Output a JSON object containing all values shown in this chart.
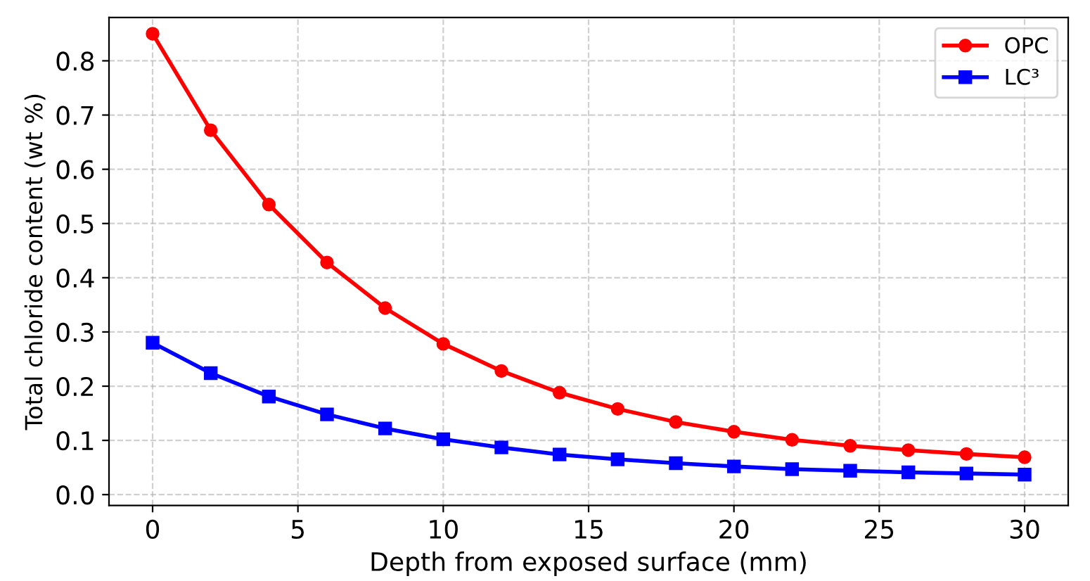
{
  "chart_data": {
    "type": "line",
    "xlabel": "Depth from exposed surface (mm)",
    "ylabel": "Total chloride content (wt %)",
    "x": [
      0,
      2,
      4,
      6,
      8,
      10,
      12,
      14,
      16,
      18,
      20,
      22,
      24,
      26,
      28,
      30
    ],
    "series": [
      {
        "name": "OPC",
        "color": "#ff0000",
        "marker": "circle",
        "values": [
          0.85,
          0.672,
          0.535,
          0.428,
          0.344,
          0.278,
          0.228,
          0.188,
          0.158,
          0.134,
          0.116,
          0.101,
          0.09,
          0.082,
          0.075,
          0.069
        ]
      },
      {
        "name": "LC³",
        "color": "#0000ff",
        "marker": "square",
        "values": [
          0.28,
          0.224,
          0.181,
          0.148,
          0.122,
          0.102,
          0.087,
          0.074,
          0.065,
          0.058,
          0.052,
          0.047,
          0.044,
          0.041,
          0.039,
          0.037
        ]
      }
    ],
    "xlim": [
      -1.5,
      31.5
    ],
    "xticks": [
      0,
      5,
      10,
      15,
      20,
      25,
      30
    ],
    "ylim": [
      -0.02,
      0.88
    ],
    "yticks": [
      {
        "value": 0,
        "label": "0.0"
      },
      0.1,
      0.2,
      0.3,
      0.4,
      0.5,
      0.6,
      0.7,
      0.8
    ],
    "grid": true,
    "legend": "top right",
    "line_style": "solid"
  }
}
